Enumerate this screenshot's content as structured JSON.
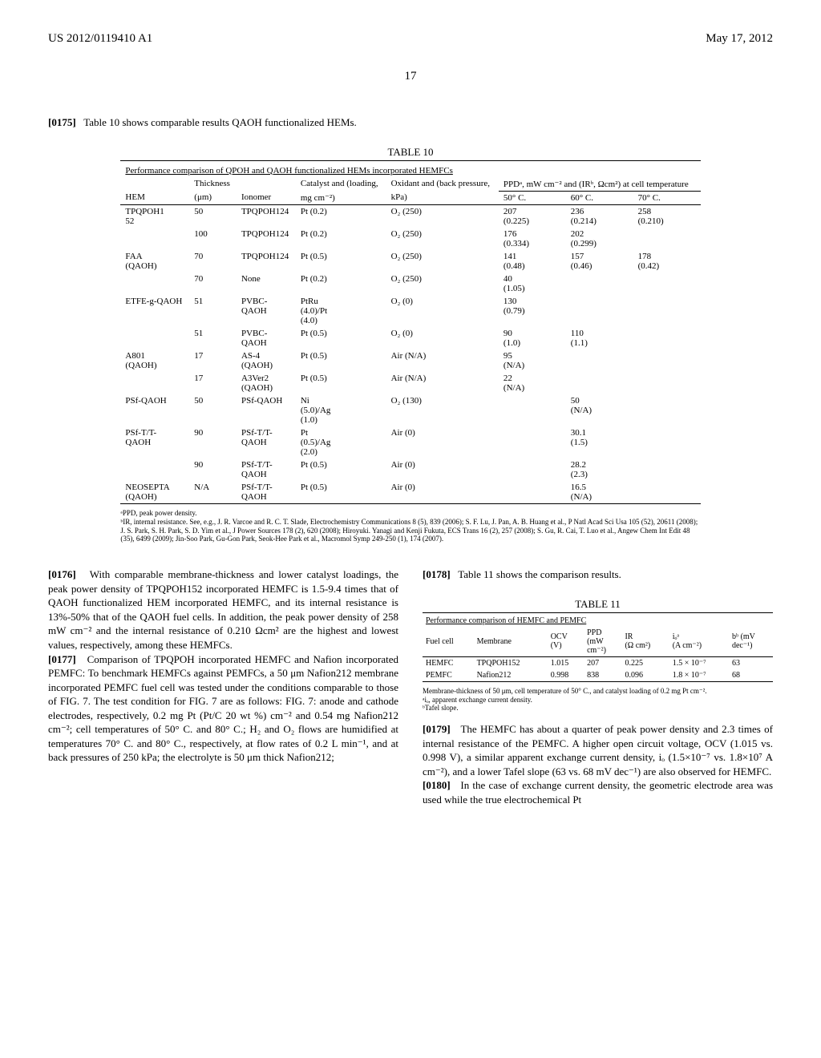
{
  "header": {
    "left": "US 2012/0119410 A1",
    "right": "May 17, 2012",
    "page_number": "17"
  },
  "intro_para": {
    "num": "[0175]",
    "text": "Table 10 shows comparable results QAOH functionalized HEMs."
  },
  "table10": {
    "caption": "TABLE 10",
    "subtitle": "Performance comparison of QPOH and QAOH functionalized HEMs incorporated HEMFCs",
    "col_headers": {
      "c1": "HEM",
      "c2_top": "Thickness",
      "c2_bot": "(μm)",
      "c3": "Ionomer",
      "c4_top": "Catalyst and (loading,",
      "c4_bot": "mg cm⁻²)",
      "c5_top": "Oxidant and (back pressure,",
      "c5_bot": "kPa)",
      "right_top": "PPDᵃ, mW cm⁻² and (IRᵇ, Ωcm²) at cell temperature",
      "c6": "50° C.",
      "c7": "60° C.",
      "c8": "70° C."
    },
    "rows": [
      {
        "hem": "TPQPOH1\n52",
        "thk": "50",
        "ion": "TPQPOH124",
        "cat": "Pt (0.2)",
        "ox": "O₂ (250)",
        "t50": "207\n(0.225)",
        "t60": "236\n(0.214)",
        "t70": "258\n(0.210)"
      },
      {
        "hem": "",
        "thk": "100",
        "ion": "TPQPOH124",
        "cat": "Pt (0.2)",
        "ox": "O₂ (250)",
        "t50": "176\n(0.334)",
        "t60": "202\n(0.299)",
        "t70": ""
      },
      {
        "hem": "FAA\n(QAOH)",
        "thk": "70",
        "ion": "TPQPOH124",
        "cat": "Pt (0.5)",
        "ox": "O₂ (250)",
        "t50": "141\n(0.48)",
        "t60": "157\n(0.46)",
        "t70": "178\n(0.42)"
      },
      {
        "hem": "",
        "thk": "70",
        "ion": "None",
        "cat": "Pt (0.2)",
        "ox": "O₂ (250)",
        "t50": "40\n(1.05)",
        "t60": "",
        "t70": ""
      },
      {
        "hem": "ETFE-g-QAOH",
        "thk": "51",
        "ion": "PVBC-\nQAOH",
        "cat": "PtRu\n(4.0)/Pt\n(4.0)",
        "ox": "O₂ (0)",
        "t50": "130\n(0.79)",
        "t60": "",
        "t70": ""
      },
      {
        "hem": "",
        "thk": "51",
        "ion": "PVBC-\nQAOH",
        "cat": "Pt (0.5)",
        "ox": "O₂ (0)",
        "t50": "90\n(1.0)",
        "t60": "110\n(1.1)",
        "t70": ""
      },
      {
        "hem": "A801\n(QAOH)",
        "thk": "17",
        "ion": "AS-4\n(QAOH)",
        "cat": "Pt (0.5)",
        "ox": "Air (N/A)",
        "t50": "95\n(N/A)",
        "t60": "",
        "t70": ""
      },
      {
        "hem": "",
        "thk": "17",
        "ion": "A3Ver2\n(QAOH)",
        "cat": "Pt (0.5)",
        "ox": "Air (N/A)",
        "t50": "22\n(N/A)",
        "t60": "",
        "t70": ""
      },
      {
        "hem": "PSf-QAOH",
        "thk": "50",
        "ion": "PSf-QAOH",
        "cat": "Ni\n(5.0)/Ag\n(1.0)",
        "ox": "O₂ (130)",
        "t50": "",
        "t60": "50\n(N/A)",
        "t70": ""
      },
      {
        "hem": "PSf-T/T-\nQAOH",
        "thk": "90",
        "ion": "PSf-T/T-\nQAOH",
        "cat": "Pt\n(0.5)/Ag\n(2.0)",
        "ox": "Air (0)",
        "t50": "",
        "t60": "30.1\n(1.5)",
        "t70": ""
      },
      {
        "hem": "",
        "thk": "90",
        "ion": "PSf-T/T-\nQAOH",
        "cat": "Pt (0.5)",
        "ox": "Air (0)",
        "t50": "",
        "t60": "28.2\n(2.3)",
        "t70": ""
      },
      {
        "hem": "NEOSEPTA\n(QAOH)",
        "thk": "N/A",
        "ion": "PSf-T/T-\nQAOH",
        "cat": "Pt (0.5)",
        "ox": "Air (0)",
        "t50": "",
        "t60": "16.5\n(N/A)",
        "t70": ""
      }
    ],
    "footnote_a": "ᵃPPD, peak power density.",
    "footnote_b": "ᵇIR, internal resistance. See, e.g., J. R. Varcoe and R. C. T. Slade, Electrochemistry Communications 8 (5), 839 (2006); S. F. Lu, J. Pan, A. B. Huang et al., P Natl Acad Sci Usa 105 (52), 20611 (2008); J. S. Park, S. H. Park, S. D. Yim et al., J Power Sources 178 (2), 620 (2008); Hiroyuki. Yanagi and Kenji Fukuta, ECS Trans 16 (2), 257 (2008); S. Gu, R. Cai, T. Luo et al., Angew Chem Int Edit 48 (35), 6499 (2009); Jin-Soo Park, Gu-Gon Park, Seok-Hee Park et al., Macromol Symp 249-250 (1), 174 (2007)."
  },
  "left_col": {
    "p176_num": "[0176]",
    "p176_text": "With comparable membrane-thickness and lower catalyst loadings, the peak power density of TPQPOH152 incorporated HEMFC is 1.5-9.4 times that of QAOH functionalized HEM incorporated HEMFC, and its internal resistance is 13%-50% that of the QAOH fuel cells. In addition, the peak power density of 258 mW cm⁻² and the internal resistance of 0.210 Ωcm² are the highest and lowest values, respectively, among these HEMFCs.",
    "p177_num": "[0177]",
    "p177_text": "Comparison of TPQPOH incorporated HEMFC and Nafion incorporated PEMFC: To benchmark HEMFCs against PEMFCs, a 50 μm Nafion212 membrane incorporated PEMFC fuel cell was tested under the conditions comparable to those of FIG. 7. The test condition for FIG. 7 are as follows: FIG. 7: anode and cathode electrodes, respectively, 0.2 mg Pt (Pt/C 20 wt %) cm⁻² and 0.54 mg Nafion212 cm⁻²; cell temperatures of 50° C. and 80° C.; H₂ and O₂ flows are humidified at temperatures 70° C. and 80° C., respectively, at flow rates of 0.2 L min⁻¹, and at back pressures of 250 kPa; the electrolyte is 50 μm thick Nafion212;"
  },
  "right_col": {
    "p178_num": "[0178]",
    "p178_text": "Table 11 shows the comparison results.",
    "table11": {
      "caption": "TABLE 11",
      "subtitle": "Performance comparison of HEMFC and PEMFC",
      "headers": {
        "c1": "Fuel cell",
        "c2": "Membrane",
        "c3": "OCV\n(V)",
        "c4": "PPD\n(mW\ncm⁻²)",
        "c5": "IR\n(Ω cm²)",
        "c6": "iₒᵃ\n(A cm⁻²)",
        "c7": "bᵇ (mV\ndec⁻¹)"
      },
      "rows": [
        {
          "c1": "HEMFC",
          "c2": "TPQPOH152",
          "c3": "1.015",
          "c4": "207",
          "c5": "0.225",
          "c6": "1.5 × 10⁻⁷",
          "c7": "63"
        },
        {
          "c1": "PEMFC",
          "c2": "Nafion212",
          "c3": "0.998",
          "c4": "838",
          "c5": "0.096",
          "c6": "1.8 × 10⁻⁷",
          "c7": "68"
        }
      ],
      "footnote_top": "Membrane-thickness of 50 μm, cell temperature of 50° C., and catalyst loading of 0.2 mg Pt cm⁻².",
      "footnote_a": "ᵃiₒ, apparent exchange current density.",
      "footnote_b": "ᵇTafel slope."
    },
    "p179_num": "[0179]",
    "p179_text": "The HEMFC has about a quarter of peak power density and 2.3 times of internal resistance of the PEMFC. A higher open circuit voltage, OCV (1.015 vs. 0.998 V), a similar apparent exchange current density, iₒ (1.5×10⁻⁷ vs. 1.8×10⁷ A cm⁻²), and a lower Tafel slope (63 vs. 68 mV dec⁻¹) are also observed for HEMFC.",
    "p180_num": "[0180]",
    "p180_text": "In the case of exchange current density, the geometric electrode area was used while the true electrochemical Pt"
  }
}
